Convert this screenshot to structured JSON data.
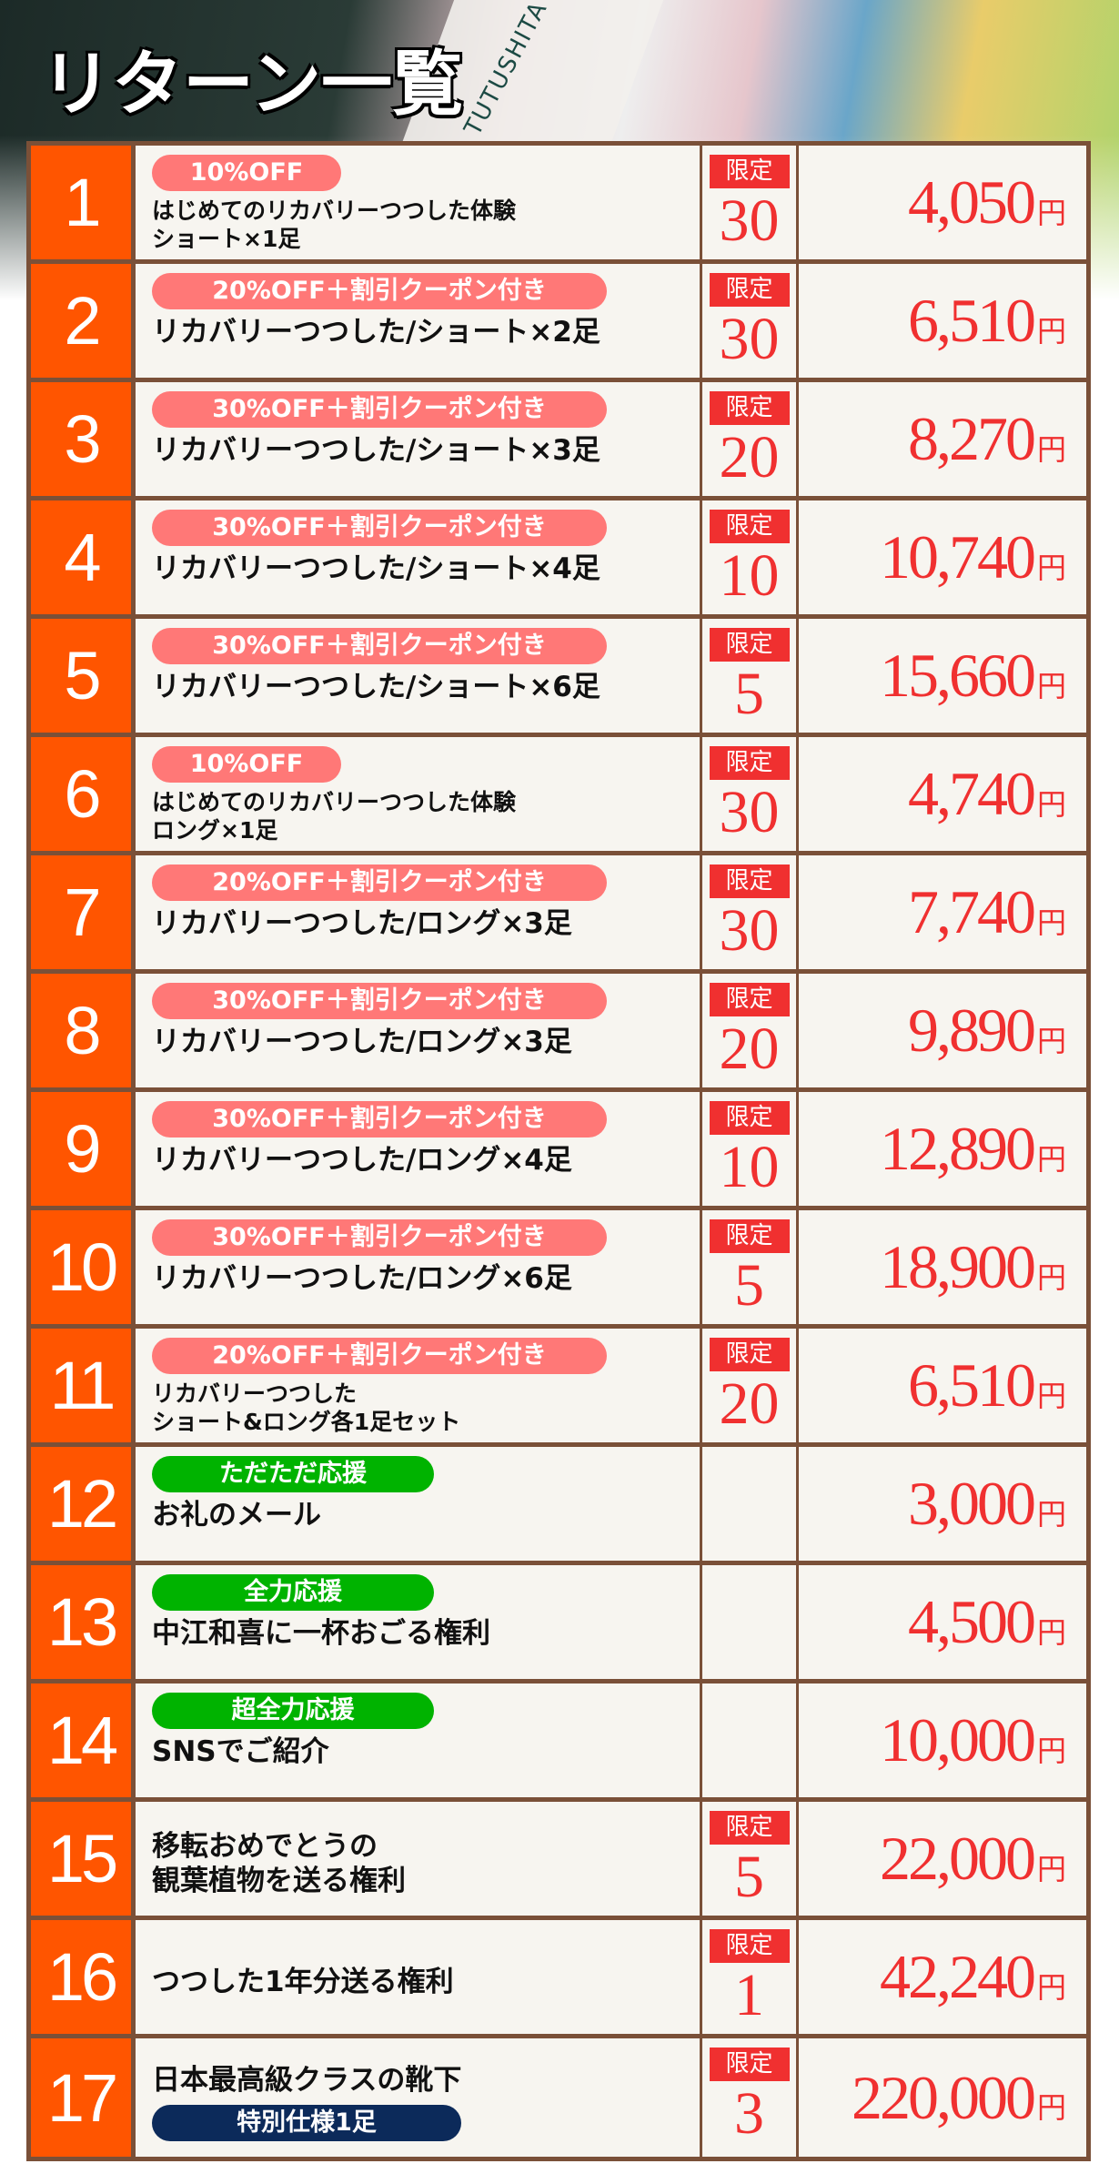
{
  "header": {
    "title": "リターン一覧",
    "brand": "TUTUSHITA"
  },
  "limit_label": "限定",
  "currency": "円",
  "colors": {
    "number_bg": "#ff5500",
    "price": "#f03030",
    "pink_pill": "#ff7877",
    "green_pill": "#00b300",
    "navy_pill": "#0c2a5a",
    "border": "#7a5038"
  },
  "rows": [
    {
      "no": "1",
      "tag": "10%OFF",
      "tag_color": "pink",
      "desc": "はじめてのリカバリーつつした体験\nショート×1足",
      "small": true,
      "limit": "30",
      "price": "4,050"
    },
    {
      "no": "2",
      "tag": "20%OFF＋割引クーポン付き",
      "tag_color": "pink",
      "desc": "リカバリーつつした/ショート×2足",
      "limit": "30",
      "price": "6,510"
    },
    {
      "no": "3",
      "tag": "30%OFF＋割引クーポン付き",
      "tag_color": "pink",
      "desc": "リカバリーつつした/ショート×3足",
      "limit": "20",
      "price": "8,270"
    },
    {
      "no": "4",
      "tag": "30%OFF＋割引クーポン付き",
      "tag_color": "pink",
      "desc": "リカバリーつつした/ショート×4足",
      "limit": "10",
      "price": "10,740"
    },
    {
      "no": "5",
      "tag": "30%OFF＋割引クーポン付き",
      "tag_color": "pink",
      "desc": "リカバリーつつした/ショート×6足",
      "limit": "5",
      "price": "15,660"
    },
    {
      "no": "6",
      "tag": "10%OFF",
      "tag_color": "pink",
      "desc": "はじめてのリカバリーつつした体験\nロング×1足",
      "small": true,
      "limit": "30",
      "price": "4,740"
    },
    {
      "no": "7",
      "tag": "20%OFF＋割引クーポン付き",
      "tag_color": "pink",
      "desc": "リカバリーつつした/ロング×3足",
      "limit": "30",
      "price": "7,740"
    },
    {
      "no": "8",
      "tag": "30%OFF＋割引クーポン付き",
      "tag_color": "pink",
      "desc": "リカバリーつつした/ロング×3足",
      "limit": "20",
      "price": "9,890"
    },
    {
      "no": "9",
      "tag": "30%OFF＋割引クーポン付き",
      "tag_color": "pink",
      "desc": "リカバリーつつした/ロング×4足",
      "limit": "10",
      "price": "12,890"
    },
    {
      "no": "10",
      "tag": "30%OFF＋割引クーポン付き",
      "tag_color": "pink",
      "desc": "リカバリーつつした/ロング×6足",
      "limit": "5",
      "price": "18,900"
    },
    {
      "no": "11",
      "tag": "20%OFF＋割引クーポン付き",
      "tag_color": "pink",
      "desc": "リカバリーつつした\nショート&ロング各1足セット",
      "small": true,
      "limit": "20",
      "price": "6,510"
    },
    {
      "no": "12",
      "tag": "ただただ応援",
      "tag_color": "green",
      "desc": "お礼のメール",
      "price": "3,000"
    },
    {
      "no": "13",
      "tag": "全力応援",
      "tag_color": "green",
      "desc": "中江和喜に一杯おごる権利",
      "price": "4,500"
    },
    {
      "no": "14",
      "tag": "超全力応援",
      "tag_color": "green",
      "desc": "SNSでご紹介",
      "price": "10,000"
    },
    {
      "no": "15",
      "desc": "移転おめでとうの\n観葉植物を送る権利",
      "limit": "5",
      "price": "22,000"
    },
    {
      "no": "16",
      "desc": "つつした1年分送る権利",
      "limit": "1",
      "price": "42,240"
    },
    {
      "no": "17",
      "desc": "日本最高級クラスの靴下",
      "sub_tag": "特別仕様1足",
      "tag_color": "navy",
      "limit": "3",
      "price": "220,000"
    }
  ]
}
